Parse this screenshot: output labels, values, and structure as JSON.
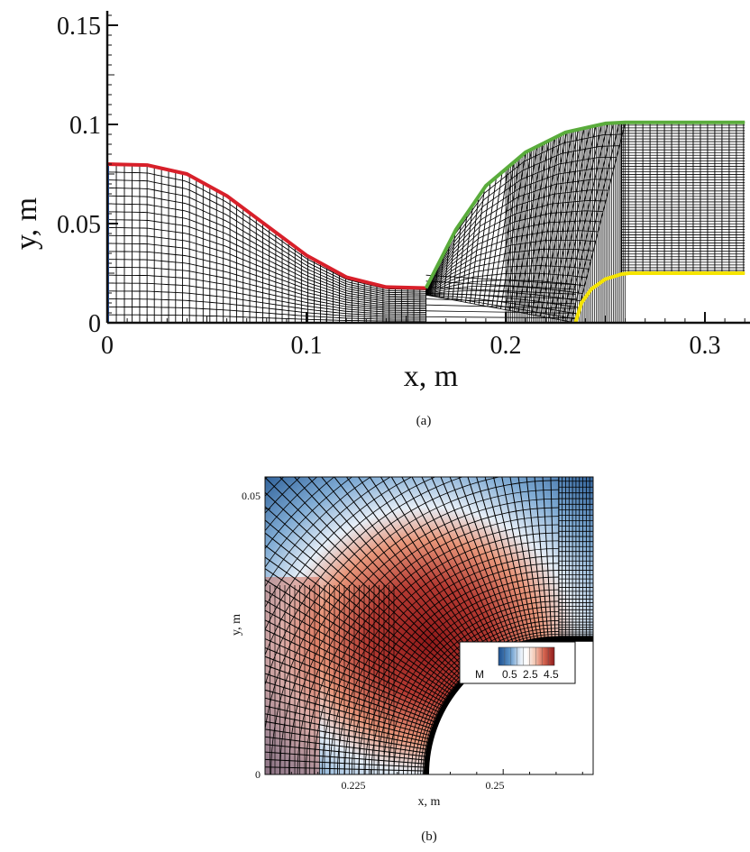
{
  "panel_a": {
    "caption": "(a)",
    "xlabel": "x, m",
    "ylabel": "y, m",
    "xticks": [
      "0",
      "0.1",
      "0.2",
      "0.3"
    ],
    "yticks": [
      "0",
      "0.05",
      "0.1",
      "0.15"
    ],
    "xlim": [
      0,
      0.32
    ],
    "ylim": [
      0,
      0.155
    ],
    "boundary_colors": {
      "inflow": "#1f4fa8",
      "nozzle_wall": "#d8202a",
      "outer_wall": "#5aac3c",
      "body": "#f5e400"
    },
    "curves": {
      "nozzle_wall": [
        [
          0,
          0.08
        ],
        [
          0.02,
          0.0795
        ],
        [
          0.04,
          0.075
        ],
        [
          0.06,
          0.064
        ],
        [
          0.08,
          0.049
        ],
        [
          0.1,
          0.034
        ],
        [
          0.12,
          0.023
        ],
        [
          0.14,
          0.018
        ],
        [
          0.16,
          0.0175
        ]
      ],
      "outer_wall": [
        [
          0.16,
          0.0175
        ],
        [
          0.175,
          0.047
        ],
        [
          0.19,
          0.069
        ],
        [
          0.21,
          0.086
        ],
        [
          0.23,
          0.096
        ],
        [
          0.25,
          0.1005
        ],
        [
          0.26,
          0.101
        ],
        [
          0.32,
          0.101
        ]
      ],
      "body": [
        [
          0.235,
          0
        ],
        [
          0.238,
          0.01
        ],
        [
          0.243,
          0.017
        ],
        [
          0.25,
          0.022
        ],
        [
          0.258,
          0.0245
        ],
        [
          0.262,
          0.025
        ],
        [
          0.32,
          0.025
        ]
      ]
    }
  },
  "panel_b": {
    "caption": "(b)",
    "xlabel": "x, m",
    "ylabel": "y, m",
    "xticks": [
      "0.225",
      "0.25"
    ],
    "yticks": [
      "0",
      "0.05"
    ],
    "xlim": [
      0.205,
      0.267
    ],
    "ylim": [
      0,
      0.056
    ],
    "legend": {
      "var": "M",
      "labels": [
        "0.5",
        "2.5",
        "4.5"
      ],
      "colors": [
        "#1c4f8f",
        "#3a78b8",
        "#8fb8dc",
        "#e6eef7",
        "#ffffff",
        "#f6d8c8",
        "#e8967a",
        "#c64a3a",
        "#8f1a1a"
      ]
    }
  }
}
